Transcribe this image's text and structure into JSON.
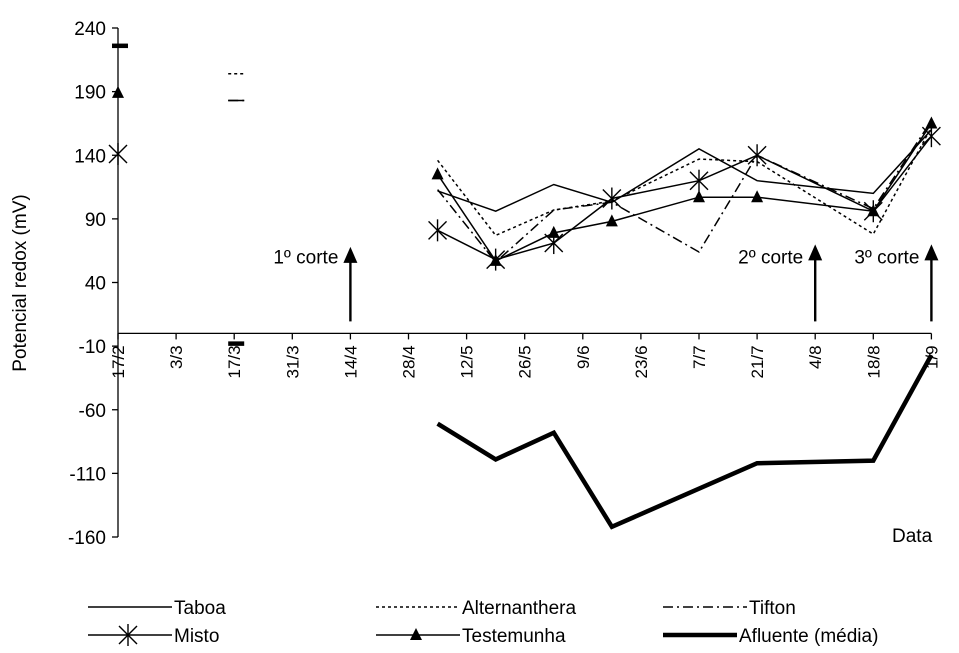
{
  "chart_data": {
    "type": "line",
    "title": "",
    "ylabel": "Potencial redox (mV)",
    "xlabel": "Data",
    "ylim": [
      -160,
      240
    ],
    "yticks": [
      240,
      190,
      140,
      90,
      40,
      -10,
      -60,
      -110,
      -160
    ],
    "x_tick_labels": [
      "17/2",
      "3/3",
      "17/3",
      "31/3",
      "14/4",
      "28/4",
      "12/5",
      "26/5",
      "9/6",
      "23/6",
      "7/7",
      "21/7",
      "4/8",
      "18/8",
      "1/9"
    ],
    "grid": false,
    "legend_position": "bottom",
    "series": [
      {
        "name": "Taboa",
        "style": "solid-thin",
        "marker": "none",
        "color": "#000000",
        "points": [
          [
            "17/2",
            226
          ],
          [
            "17/3",
            183
          ],
          [
            "5/5",
            112
          ],
          [
            "19/5",
            96
          ],
          [
            "2/6",
            117
          ],
          [
            "16/6",
            103
          ],
          [
            "7/7",
            145
          ],
          [
            "21/7",
            120
          ],
          [
            "18/8",
            110
          ],
          [
            "1/9",
            160
          ]
        ]
      },
      {
        "name": "Alternanthera",
        "style": "dotted",
        "marker": "none",
        "color": "#000000",
        "points": [
          [
            "17/2",
            226
          ],
          [
            "17/3",
            204
          ],
          [
            "5/5",
            136
          ],
          [
            "19/5",
            77
          ],
          [
            "2/6",
            97
          ],
          [
            "16/6",
            104
          ],
          [
            "7/7",
            137
          ],
          [
            "21/7",
            135
          ],
          [
            "18/8",
            78
          ],
          [
            "1/9",
            162
          ]
        ]
      },
      {
        "name": "Tifton",
        "style": "dash-dot",
        "marker": "none",
        "color": "#000000",
        "points": [
          [
            "17/2",
            226
          ],
          [
            "17/3",
            183
          ],
          [
            "5/5",
            113
          ],
          [
            "19/5",
            56
          ],
          [
            "2/6",
            97
          ],
          [
            "16/6",
            103
          ],
          [
            "7/7",
            64
          ],
          [
            "21/7",
            140
          ],
          [
            "18/8",
            98
          ],
          [
            "1/9",
            167
          ]
        ]
      },
      {
        "name": "Misto",
        "style": "solid-thin",
        "marker": "asterisk",
        "color": "#000000",
        "points": [
          [
            "17/2",
            141
          ],
          [
            "5/5",
            81
          ],
          [
            "19/5",
            58
          ],
          [
            "2/6",
            71
          ],
          [
            "16/6",
            106
          ],
          [
            "7/7",
            120
          ],
          [
            "21/7",
            140
          ],
          [
            "18/8",
            96
          ],
          [
            "1/9",
            155
          ]
        ]
      },
      {
        "name": "Testemunha",
        "style": "solid-thin",
        "marker": "triangle",
        "color": "#000000",
        "points": [
          [
            "17/2",
            189
          ],
          [
            "5/5",
            125
          ],
          [
            "19/5",
            57
          ],
          [
            "2/6",
            79
          ],
          [
            "16/6",
            88
          ],
          [
            "7/7",
            107
          ],
          [
            "21/7",
            107
          ],
          [
            "18/8",
            96
          ],
          [
            "1/9",
            165
          ]
        ]
      },
      {
        "name": "Afluente (média)",
        "style": "solid-thick",
        "marker": "none",
        "color": "#000000",
        "points": [
          [
            "17/2",
            226
          ],
          [
            "17/3",
            -8
          ],
          [
            "5/5",
            -71
          ],
          [
            "19/5",
            -99
          ],
          [
            "2/6",
            -78
          ],
          [
            "16/6",
            -152
          ],
          [
            "21/7",
            -102
          ],
          [
            "18/8",
            -100
          ],
          [
            "1/9",
            -17
          ]
        ]
      }
    ],
    "annotations": [
      {
        "label": "1º corte",
        "date": "14/4",
        "arrow_from": 0,
        "arrow_to": 68
      },
      {
        "label": "2º corte",
        "date": "4/8",
        "arrow_from": 0,
        "arrow_to": 70
      },
      {
        "label": "3º corte",
        "date": "1/9",
        "arrow_from": 0,
        "arrow_to": 70
      }
    ]
  }
}
